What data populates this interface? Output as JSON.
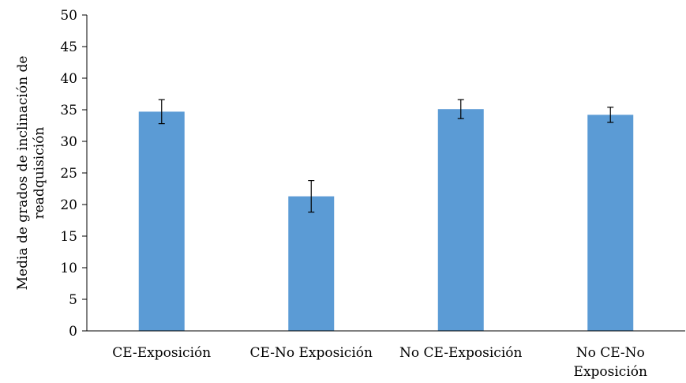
{
  "chart_data": {
    "type": "bar",
    "title": "",
    "xlabel": "",
    "ylabel": "Media de grados de inclinación de readquisición",
    "ylabel_lines": [
      "Media de grados de inclinación de",
      "readquisición"
    ],
    "categories": [
      "CE-Exposición",
      "CE-No Exposición",
      "No CE-Exposición",
      "No CE-No Exposición"
    ],
    "category_lines": [
      [
        "CE-Exposición"
      ],
      [
        "CE-No Exposición"
      ],
      [
        "No CE-Exposición"
      ],
      [
        "No CE-No",
        "Exposición"
      ]
    ],
    "values": [
      34.7,
      21.3,
      35.1,
      34.2
    ],
    "error": [
      1.9,
      2.5,
      1.5,
      1.2
    ],
    "ylim": [
      0,
      50
    ],
    "yticks": [
      0,
      5,
      10,
      15,
      20,
      25,
      30,
      35,
      40,
      45,
      50
    ],
    "grid": false,
    "legend": "none",
    "bar_color": "#5B9BD5",
    "axis_color": "#000000"
  }
}
